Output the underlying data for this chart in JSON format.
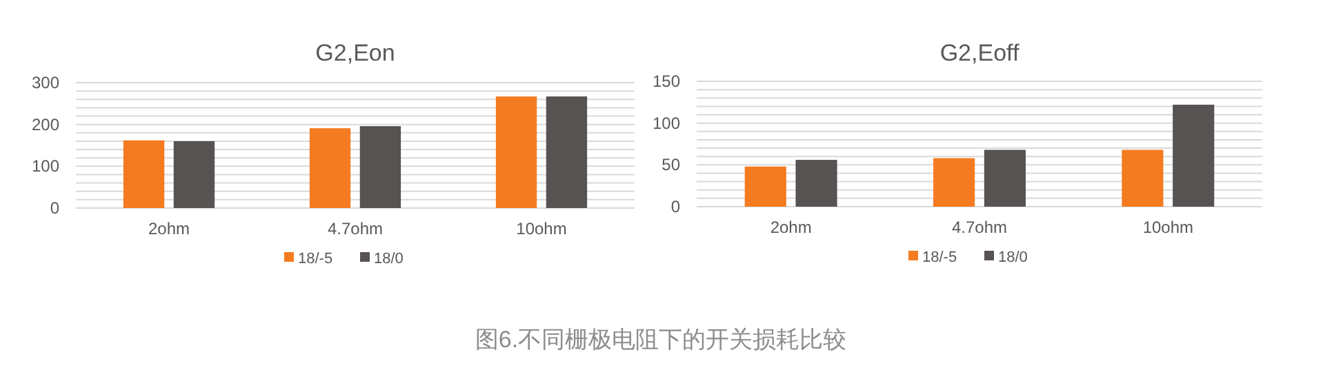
{
  "chart_data": [
    {
      "type": "bar",
      "title": "G2,Eon",
      "categories": [
        "2ohm",
        "4.7ohm",
        "10ohm"
      ],
      "series": [
        {
          "name": "18/-5",
          "color": "#f47b20",
          "values": [
            162,
            191,
            267
          ]
        },
        {
          "name": "18/0",
          "color": "#575352",
          "values": [
            160,
            196,
            267
          ]
        }
      ],
      "ylim": [
        0,
        300
      ],
      "yticks": [
        0,
        {
          "value": 20,
          "label": null
        },
        {
          "value": 40,
          "label": null
        },
        {
          "value": 60,
          "label": null
        },
        {
          "value": 80,
          "label": null
        },
        100,
        {
          "value": 120,
          "label": null
        },
        {
          "value": 140,
          "label": null
        },
        {
          "value": 160,
          "label": null
        },
        {
          "value": 180,
          "label": null
        },
        200,
        {
          "value": 220,
          "label": null
        },
        {
          "value": 240,
          "label": null
        },
        {
          "value": 260,
          "label": null
        },
        {
          "value": 280,
          "label": null
        },
        300
      ],
      "grid": "y",
      "legend": "bottom",
      "annotations": [
        "图6.不同栅极电阻下的开关损耗比较"
      ]
    },
    {
      "type": "bar",
      "title": "G2,Eoff",
      "categories": [
        "2ohm",
        "4.7ohm",
        "10ohm"
      ],
      "series": [
        {
          "name": "18/-5",
          "color": "#f47b20",
          "values": [
            48,
            58,
            68
          ]
        },
        {
          "name": "18/0",
          "color": "#575352",
          "values": [
            56,
            68,
            122
          ]
        }
      ],
      "ylim": [
        0,
        150
      ],
      "yticks": [
        0,
        {
          "value": 10,
          "label": null
        },
        {
          "value": 20,
          "label": null
        },
        {
          "value": 30,
          "label": null
        },
        {
          "value": 40,
          "label": null
        },
        50,
        {
          "value": 60,
          "label": null
        },
        {
          "value": 70,
          "label": null
        },
        {
          "value": 80,
          "label": null
        },
        {
          "value": 90,
          "label": null
        },
        100,
        {
          "value": 110,
          "label": null
        },
        {
          "value": 120,
          "label": null
        },
        {
          "value": 130,
          "label": null
        },
        {
          "value": 140,
          "label": null
        },
        150
      ],
      "grid": "y",
      "legend": "bottom"
    }
  ]
}
